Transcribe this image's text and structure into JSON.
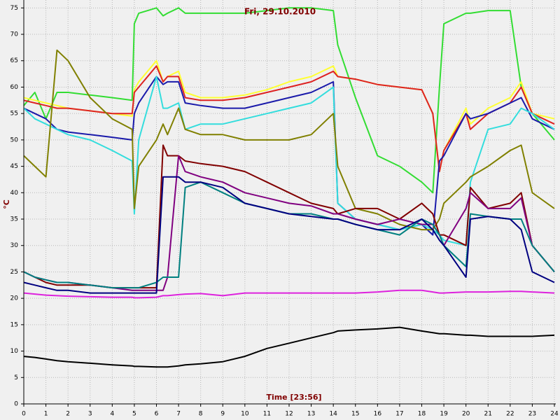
{
  "chart_data": {
    "type": "line",
    "title": "Fri, 29.10.2010",
    "x_label": "Time [23:56]",
    "y_label": "°C",
    "x": [
      0,
      0.5,
      1,
      1.5,
      2,
      3,
      4,
      4.9,
      5,
      5.2,
      6,
      6.3,
      6.5,
      7,
      7.3,
      8,
      9,
      10,
      11,
      12,
      13,
      14,
      14.2,
      15,
      16,
      17,
      18,
      18.5,
      18.8,
      19,
      20,
      20.2,
      21,
      22,
      22.5,
      23,
      24
    ],
    "xlim": [
      0,
      24
    ],
    "ylim": [
      0,
      76.5
    ],
    "xticks": [
      0,
      1,
      2,
      3,
      4,
      5,
      6,
      7,
      8,
      9,
      10,
      11,
      12,
      13,
      14,
      15,
      16,
      17,
      18,
      19,
      20,
      21,
      22,
      23,
      24
    ],
    "yticks": [
      0,
      5,
      10,
      15,
      20,
      25,
      30,
      35,
      40,
      45,
      50,
      55,
      60,
      65,
      70,
      75
    ],
    "grid": true,
    "series": [
      {
        "color": "#33dd33",
        "values": [
          56.5,
          59,
          54,
          59,
          59,
          58.5,
          58,
          57.5,
          72,
          74,
          75,
          73.5,
          74,
          75,
          74,
          74,
          74,
          74,
          74.5,
          75,
          75,
          74.5,
          68,
          58,
          47,
          45,
          42,
          40,
          60,
          72,
          74,
          74,
          74.5,
          74.5,
          60,
          55,
          50
        ]
      },
      {
        "color": "#ffff33",
        "values": [
          58,
          57.5,
          57,
          56.5,
          56,
          55.5,
          55,
          54.5,
          59.5,
          61,
          65,
          61,
          62,
          63,
          59,
          58,
          58,
          58.5,
          59.5,
          61,
          62,
          64,
          62,
          61.5,
          60.5,
          60,
          59.5,
          55,
          44,
          48,
          56,
          53,
          56,
          58,
          61,
          55,
          54
        ]
      },
      {
        "color": "#dd2222",
        "values": [
          57.5,
          57,
          56.5,
          56,
          56,
          55.5,
          55,
          55,
          59,
          60,
          64,
          61,
          62,
          62,
          58,
          57.5,
          57.5,
          58,
          59,
          60,
          61,
          63,
          62,
          61.5,
          60.5,
          60,
          59.5,
          55,
          44,
          48,
          55,
          52,
          55,
          57,
          60,
          55,
          53
        ]
      },
      {
        "color": "#1a1aaa",
        "values": [
          56,
          55,
          54,
          52,
          51.5,
          51,
          50.5,
          50,
          55,
          57,
          62,
          60.5,
          61,
          61,
          57,
          56.5,
          56,
          56,
          57,
          58,
          59,
          61,
          38,
          35,
          34,
          33,
          34,
          32,
          46,
          47,
          55,
          54,
          55,
          57,
          58,
          54,
          52
        ]
      },
      {
        "color": "#33dddd",
        "values": [
          56,
          54,
          53,
          52,
          51,
          50,
          48,
          46,
          36,
          50,
          62,
          56,
          56,
          57,
          52,
          53,
          53,
          54,
          55,
          56,
          57,
          60,
          38,
          35,
          34,
          33,
          34,
          33,
          32,
          31,
          30,
          42,
          52,
          53,
          56,
          55,
          52
        ]
      },
      {
        "color": "#808000",
        "values": [
          47,
          45,
          43,
          67,
          65,
          58,
          54,
          52,
          37,
          45,
          50,
          53,
          51,
          56,
          52,
          51,
          51,
          50,
          50,
          50,
          51,
          55,
          45,
          37,
          36,
          34,
          33,
          33,
          35,
          38,
          42,
          43,
          45,
          48,
          49,
          40,
          37
        ]
      },
      {
        "color": "#800000",
        "values": [
          25,
          24,
          23,
          22.5,
          22.5,
          22.5,
          22,
          22,
          22,
          22,
          22,
          49,
          47,
          47,
          46,
          45.5,
          45,
          44,
          42,
          40,
          38,
          37,
          36,
          37,
          37,
          35,
          38,
          36,
          32,
          32,
          30,
          41,
          37,
          38,
          40,
          30,
          25
        ]
      },
      {
        "color": "#800080",
        "values": [
          25,
          24,
          23.5,
          23,
          23,
          22.5,
          22,
          21.5,
          21.5,
          21.5,
          21.5,
          21.5,
          24,
          47,
          44,
          43,
          42,
          40,
          39,
          38,
          37.5,
          36,
          36,
          35,
          34,
          35,
          34,
          34,
          32,
          30,
          37,
          40,
          37,
          37,
          39,
          30,
          25
        ]
      },
      {
        "color": "#008080",
        "values": [
          25,
          24,
          23.5,
          23,
          23,
          22.5,
          22,
          22,
          22,
          22,
          23,
          24,
          24,
          24,
          41,
          42,
          40,
          38,
          37,
          36,
          36,
          35,
          35,
          34,
          33,
          32,
          35,
          34,
          32,
          30,
          26,
          36,
          35.5,
          35,
          35,
          30,
          25
        ]
      },
      {
        "color": "#000080",
        "values": [
          23,
          22.5,
          22,
          21.5,
          21.5,
          21,
          21,
          21,
          21,
          21,
          21,
          43,
          43,
          43,
          42,
          42,
          41,
          38,
          37,
          36,
          35.5,
          35,
          35,
          34,
          33,
          33,
          35,
          33,
          31,
          30,
          24,
          35,
          35.5,
          35,
          33,
          25,
          23
        ]
      },
      {
        "color": "#dd22dd",
        "values": [
          21,
          20.8,
          20.6,
          20.5,
          20.4,
          20.3,
          20.2,
          20.2,
          20.1,
          20.1,
          20.2,
          20.5,
          20.5,
          20.7,
          20.8,
          20.9,
          20.5,
          21,
          21,
          21,
          21,
          21,
          21,
          21,
          21.2,
          21.5,
          21.5,
          21.2,
          21,
          21,
          21.2,
          21.2,
          21.2,
          21.3,
          21.3,
          21.2,
          21
        ]
      },
      {
        "color": "#000000",
        "values": [
          9,
          8.8,
          8.5,
          8.2,
          8,
          7.7,
          7.4,
          7.2,
          7.1,
          7.1,
          7,
          7,
          7,
          7.2,
          7.4,
          7.6,
          8,
          9,
          10.5,
          11.5,
          12.5,
          13.5,
          13.8,
          14,
          14.2,
          14.5,
          13.8,
          13.5,
          13.3,
          13.3,
          13,
          13,
          12.8,
          12.8,
          12.8,
          12.8,
          13
        ]
      }
    ]
  }
}
